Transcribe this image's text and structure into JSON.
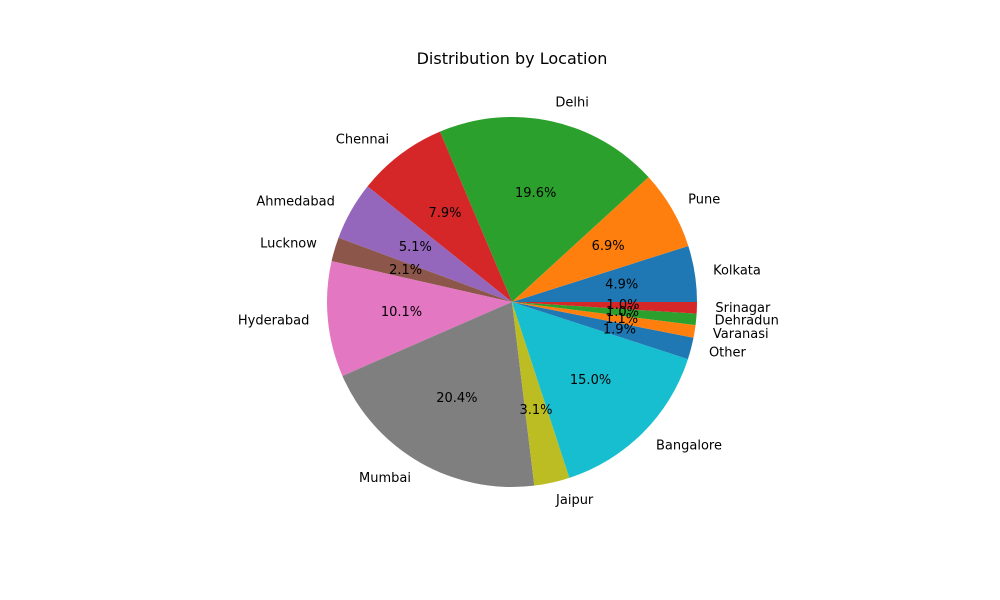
{
  "chart_data": {
    "type": "pie",
    "title": "Distribution by Location",
    "start_angle_deg": 0,
    "direction": "counterclockwise",
    "slices": [
      {
        "label": "Kolkata",
        "value": 4.9,
        "pct_text": "4.9%",
        "color": "#1f77b4"
      },
      {
        "label": "Pune",
        "value": 6.9,
        "pct_text": "6.9%",
        "color": "#ff7f0e"
      },
      {
        "label": "Delhi",
        "value": 19.6,
        "pct_text": "19.6%",
        "color": "#2ca02c"
      },
      {
        "label": "Chennai",
        "value": 7.9,
        "pct_text": "7.9%",
        "color": "#d62728"
      },
      {
        "label": "Ahmedabad",
        "value": 5.1,
        "pct_text": "5.1%",
        "color": "#9467bd"
      },
      {
        "label": "Lucknow",
        "value": 2.1,
        "pct_text": "2.1%",
        "color": "#8c564b"
      },
      {
        "label": "Hyderabad",
        "value": 10.1,
        "pct_text": "10.1%",
        "color": "#e377c2"
      },
      {
        "label": "Mumbai",
        "value": 20.4,
        "pct_text": "20.4%",
        "color": "#7f7f7f"
      },
      {
        "label": "Jaipur",
        "value": 3.1,
        "pct_text": "3.1%",
        "color": "#bcbd22"
      },
      {
        "label": "Bangalore",
        "value": 15.0,
        "pct_text": "15.0%",
        "color": "#17becf"
      },
      {
        "label": "Other",
        "value": 1.9,
        "pct_text": "1.9%",
        "color": "#1f77b4"
      },
      {
        "label": "Varanasi",
        "value": 1.1,
        "pct_text": "1.1%",
        "color": "#ff7f0e"
      },
      {
        "label": "Dehradun",
        "value": 1.0,
        "pct_text": "1.0%",
        "color": "#2ca02c"
      },
      {
        "label": "Srinagar",
        "value": 1.0,
        "pct_text": "1.0%",
        "color": "#d62728"
      }
    ]
  }
}
